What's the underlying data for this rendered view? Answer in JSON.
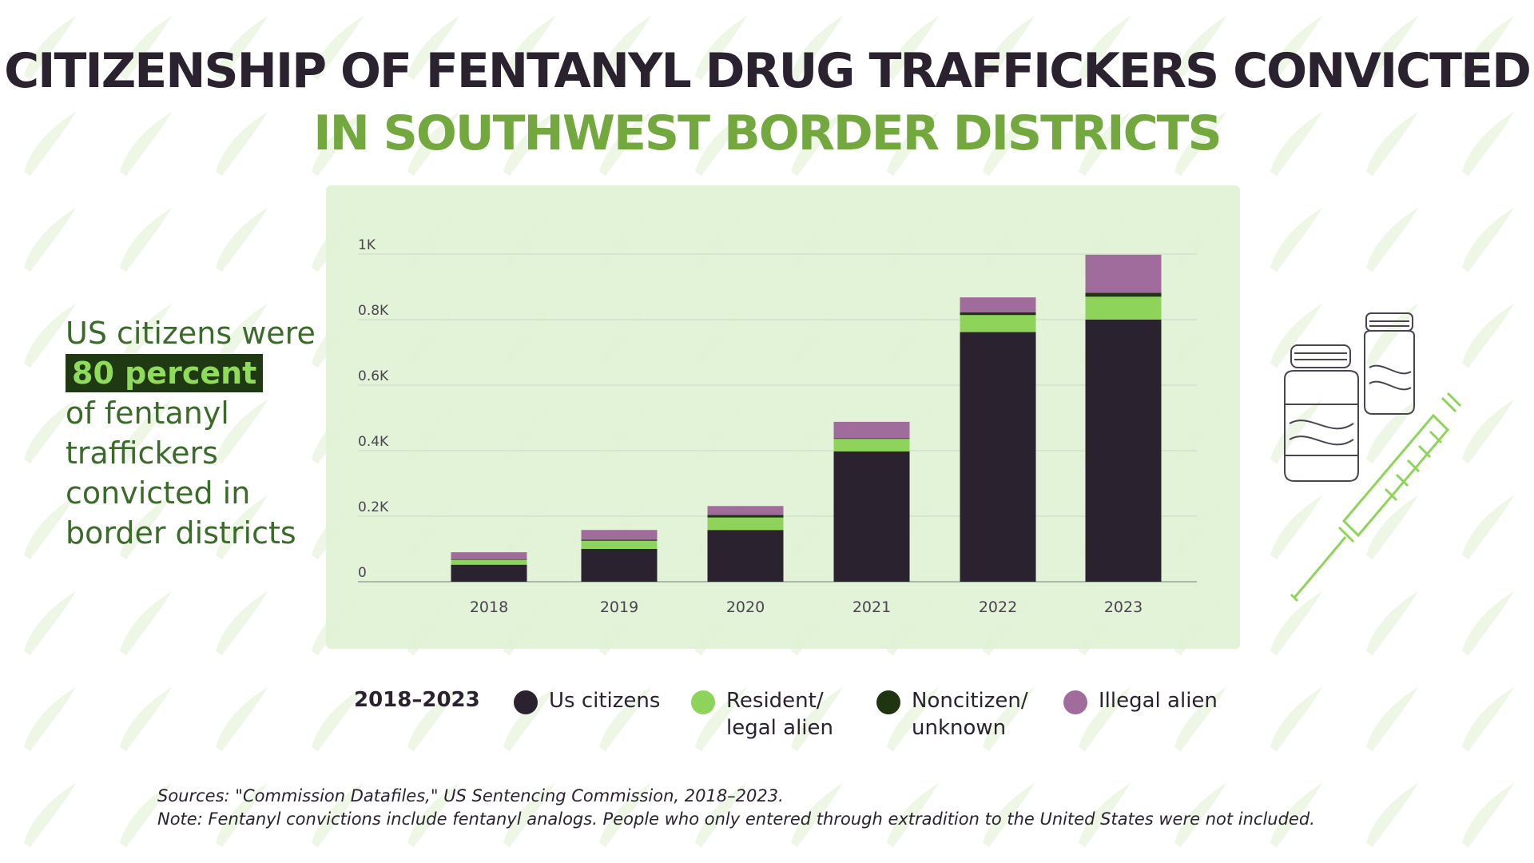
{
  "title": {
    "line1": "CITIZENSHIP OF FENTANYL DRUG TRAFFICKERS CONVICTED",
    "line2": "IN SOUTHWEST BORDER DISTRICTS"
  },
  "callout": {
    "line1": "US citizens were",
    "highlight": "80 percent",
    "line3": "of fentanyl",
    "line4": "traffickers",
    "line5": "convicted in",
    "line6": "border districts"
  },
  "legend": {
    "period": "2018–2023",
    "items": [
      {
        "label": "Us citizens",
        "color": "#2b2230"
      },
      {
        "label": "Resident/ legal alien",
        "color": "#8fd45a"
      },
      {
        "label": "Noncitizen/ unknown",
        "color": "#1f3512"
      },
      {
        "label": "Illegal alien",
        "color": "#a06c9c"
      }
    ]
  },
  "sources": {
    "line1": "Sources: \"Commission Datafiles,\" US Sentencing Commission, 2018–2023.",
    "line2": "Note: Fentanyl convictions include fentanyl analogs. People who only entered through extradition to the United States were not included."
  },
  "chart_data": {
    "type": "bar",
    "stacked": true,
    "categories": [
      "2018",
      "2019",
      "2020",
      "2021",
      "2022",
      "2023"
    ],
    "ylim": [
      0,
      1000
    ],
    "yticks": [
      {
        "value": 0,
        "label": "0"
      },
      {
        "value": 200,
        "label": "0.2K"
      },
      {
        "value": 400,
        "label": "0.4K"
      },
      {
        "value": 600,
        "label": "0.6K"
      },
      {
        "value": 800,
        "label": "0.8K"
      },
      {
        "value": 1000,
        "label": "1K"
      }
    ],
    "grid": true,
    "legend_position": "bottom",
    "series": [
      {
        "name": "Us citizens",
        "color": "#2b2230",
        "values": [
          52,
          100,
          158,
          398,
          762,
          800
        ]
      },
      {
        "name": "Resident/ legal alien",
        "color": "#8fd45a",
        "values": [
          15,
          25,
          38,
          38,
          52,
          70
        ]
      },
      {
        "name": "Noncitizen/ unknown",
        "color": "#1f3512",
        "values": [
          2,
          3,
          8,
          2,
          8,
          12
        ]
      },
      {
        "name": "Illegal alien",
        "color": "#a06c9c",
        "values": [
          21,
          30,
          27,
          50,
          46,
          116
        ]
      }
    ]
  }
}
